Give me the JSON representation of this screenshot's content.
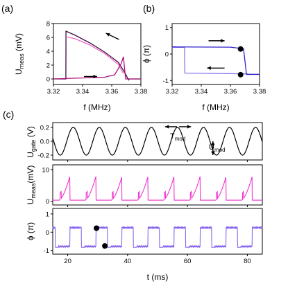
{
  "figure": {
    "panel_labels": [
      "(a)",
      "(b)",
      "(c)"
    ]
  },
  "chart_data": [
    {
      "id": "a",
      "type": "line",
      "xlabel": "f (MHz)",
      "ylabel_main": "U",
      "ylabel_sub": "meas",
      "ylabel_tail": " (mV)",
      "xlim": [
        3.32,
        3.38
      ],
      "ylim": [
        -0.8,
        8
      ],
      "xticks": [
        "3.32",
        "3.34",
        "3.36",
        "3.38"
      ],
      "yticks": [
        "0",
        "2",
        "4",
        "6",
        "8"
      ],
      "series": [
        {
          "color": "#3b0a3b",
          "x": [
            3.32,
            3.3285,
            3.3286,
            3.335,
            3.345,
            3.355,
            3.3645,
            3.369,
            3.3715,
            3.372,
            3.38
          ],
          "y": [
            0,
            0,
            6.9,
            6.3,
            5.2,
            3.9,
            2.4,
            0.9,
            -0.15,
            0,
            0
          ]
        },
        {
          "color": "#ee66cc",
          "x": [
            3.3285,
            3.335,
            3.345,
            3.355,
            3.3645,
            3.368
          ],
          "y": [
            6.1,
            5.8,
            4.9,
            3.7,
            2.1,
            0.8
          ]
        },
        {
          "color": "#b0107a",
          "x": [
            3.32,
            3.355,
            3.362,
            3.3665,
            3.368,
            3.3695,
            3.38
          ],
          "y": [
            0,
            0.25,
            0.6,
            2.2,
            3.2,
            0.0,
            0
          ]
        }
      ],
      "arrows": [
        {
          "x1": 3.365,
          "y1": 5.7,
          "x2": 3.356,
          "y2": 6.6
        },
        {
          "x1": 3.341,
          "y1": 0.35,
          "x2": 3.35,
          "y2": 0.35
        }
      ]
    },
    {
      "id": "b",
      "type": "line",
      "xlabel": "f (MHz)",
      "ylabel": "ϕ (π)",
      "xlim": [
        3.32,
        3.38
      ],
      "ylim": [
        -1.15,
        1.15
      ],
      "xticks": [
        "3.32",
        "3.34",
        "3.36",
        "3.38"
      ],
      "yticks": [
        "-1",
        "0",
        "1"
      ],
      "series": [
        {
          "color": "#8878ee",
          "x": [
            3.32,
            3.3285,
            3.3287,
            3.36,
            3.372,
            3.3725,
            3.38
          ],
          "y": [
            0.25,
            0.25,
            -0.72,
            -0.74,
            -0.75,
            -0.76,
            -0.76
          ]
        },
        {
          "color": "#3020cc",
          "x": [
            3.32,
            3.36,
            3.369,
            3.3705,
            3.371,
            3.38
          ],
          "y": [
            0.27,
            0.26,
            0.2,
            -0.5,
            -0.77,
            -0.77
          ]
        }
      ],
      "markers": [
        {
          "x": 3.367,
          "y": 0.19
        },
        {
          "x": 3.367,
          "y": -0.78
        }
      ],
      "arrows": [
        {
          "x1": 3.345,
          "y1": 0.5,
          "x2": 3.356,
          "y2": 0.5
        },
        {
          "x1": 3.356,
          "y1": -0.53,
          "x2": 3.344,
          "y2": -0.53
        }
      ]
    },
    {
      "id": "c-gate",
      "type": "line",
      "ylabel_main": "U",
      "ylabel_sub": "gate",
      "ylabel_tail": " (V)",
      "xlim": [
        15,
        85
      ],
      "ylim": [
        -0.27,
        0.27
      ],
      "yticks": [
        "-0.2",
        "0.0",
        "0.2"
      ],
      "series": [
        {
          "color": "#000000",
          "function": "0.2*sin(2*pi*(t-17.5)/8.7 + 3*pi/2)"
        }
      ],
      "annotations": [
        {
          "label_main": "T",
          "label_sub": "mod",
          "x1": 52.5,
          "x2": 61.2,
          "y": 0.21
        },
        {
          "label_main": "U",
          "label_sub": "mod",
          "x": 68.5,
          "y1": 0.0,
          "y2": -0.2
        }
      ]
    },
    {
      "id": "c-meas",
      "type": "line",
      "ylabel_main": "U",
      "ylabel_sub": "meas",
      "ylabel_tail": "(mV)",
      "xlim": [
        15,
        85
      ],
      "ylim": [
        -1.2,
        11.5
      ],
      "yticks": [
        "0",
        "10"
      ],
      "series": [
        {
          "color": "#ee33cc",
          "period_ms": 8.7,
          "rise_ms": 3.6,
          "peak_mV": 7.5,
          "baseline_mV": 0.3
        }
      ]
    },
    {
      "id": "c-phase",
      "type": "line",
      "xlabel": "t (ms)",
      "ylabel": "ϕ (π)",
      "xlim": [
        15,
        85
      ],
      "ylim": [
        -1.2,
        1.3
      ],
      "xticks": [
        "20",
        "40",
        "60",
        "80"
      ],
      "yticks": [
        "-1",
        "0",
        "1"
      ],
      "series": [
        {
          "color": "#8866ee",
          "period_ms": 8.7,
          "high": 0.25,
          "low": -0.78
        }
      ],
      "markers": [
        {
          "x": 29.6,
          "y": 0.22
        },
        {
          "x": 32.4,
          "y": -0.75
        }
      ]
    }
  ]
}
